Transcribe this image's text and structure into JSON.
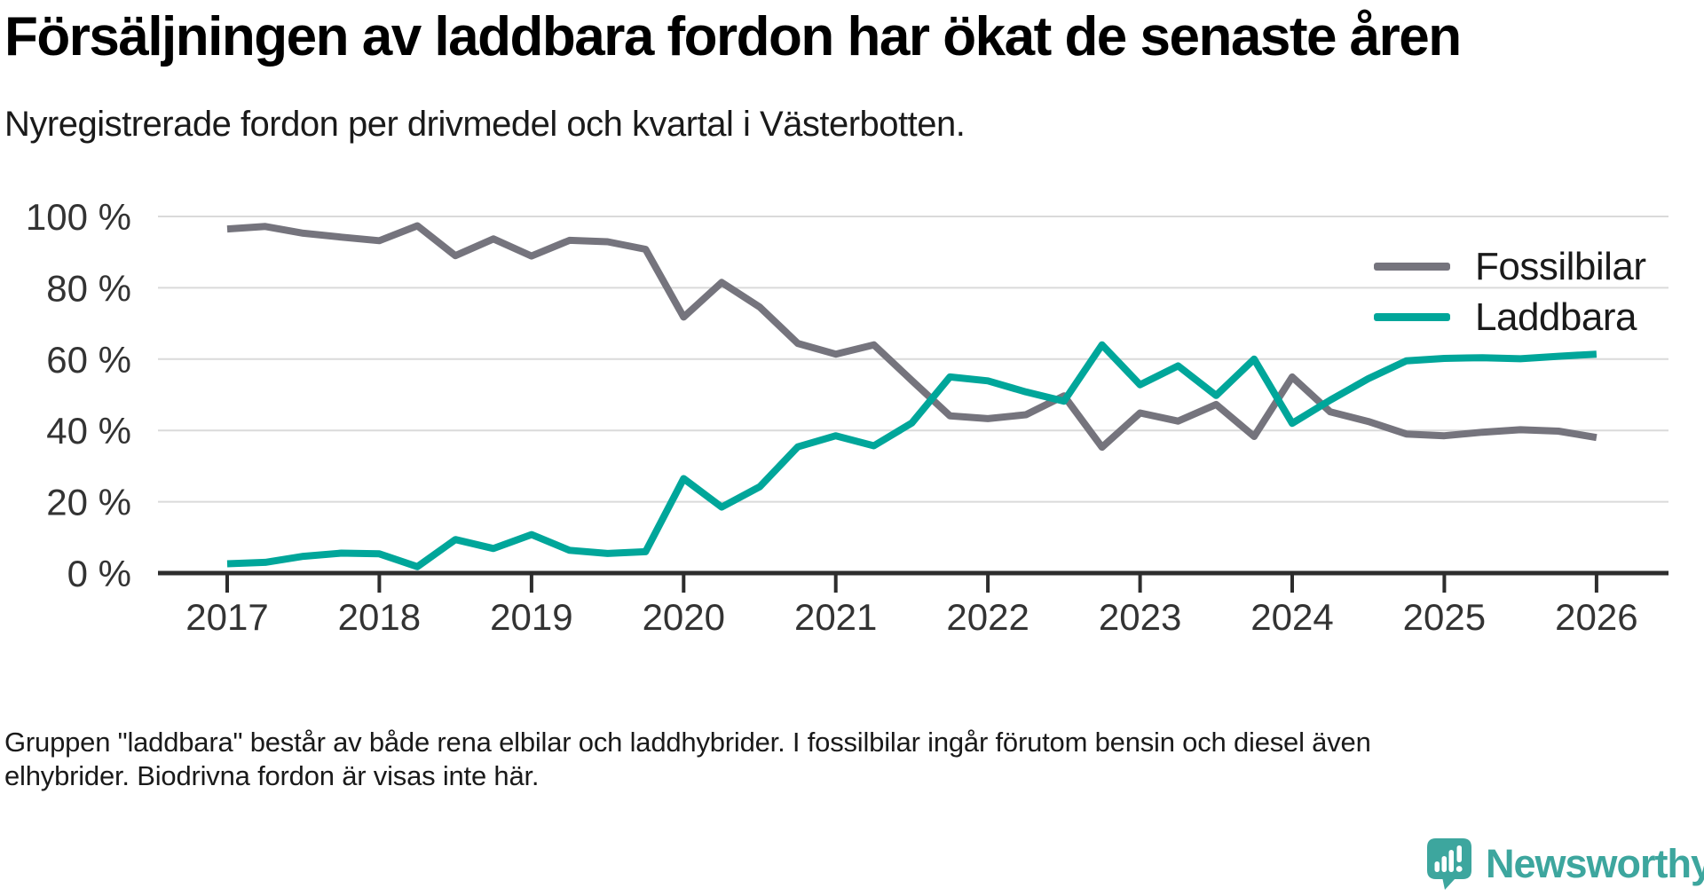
{
  "header": {
    "title": "Försäljningen av laddbara fordon har ökat de senaste åren",
    "subtitle": "Nyregistrerade fordon per drivmedel och kvartal i Västerbotten."
  },
  "footnote": {
    "line1": "Gruppen \"laddbara\" består av både rena elbilar och laddhybrider. I fossilbilar ingår förutom bensin och diesel även",
    "line2": "elhybrider. Biodrivna fordon är visas inte här."
  },
  "logo": {
    "brand": "Newsworthy",
    "color": "#3da69e"
  },
  "chart_data": {
    "type": "line",
    "title": "Försäljningen av laddbara fordon har ökat de senaste åren",
    "subtitle": "Nyregistrerade fordon per drivmedel och kvartal i Västerbotten.",
    "unit": "%",
    "ylim": [
      0,
      100
    ],
    "grid": true,
    "legend_position": "top-right",
    "y_ticks": [
      {
        "value": 100,
        "label": "100 %"
      },
      {
        "value": 80,
        "label": "80 %"
      },
      {
        "value": 60,
        "label": "60 %"
      },
      {
        "value": 40,
        "label": "40 %"
      },
      {
        "value": 20,
        "label": "20 %"
      },
      {
        "value": 0,
        "label": "0 %"
      }
    ],
    "x_tick_labels": [
      "2017",
      "2018",
      "2019",
      "2020",
      "2021",
      "2022",
      "2023",
      "2024",
      "2025",
      "2026"
    ],
    "categories": [
      "2017 Q1",
      "2017 Q2",
      "2017 Q3",
      "2017 Q4",
      "2018 Q1",
      "2018 Q2",
      "2018 Q3",
      "2018 Q4",
      "2019 Q1",
      "2019 Q2",
      "2019 Q3",
      "2019 Q4",
      "2020 Q1",
      "2020 Q2",
      "2020 Q3",
      "2020 Q4",
      "2021 Q1",
      "2021 Q2",
      "2021 Q3",
      "2021 Q4",
      "2022 Q1",
      "2022 Q2",
      "2022 Q3",
      "2022 Q4",
      "2023 Q1",
      "2023 Q2",
      "2023 Q3",
      "2023 Q4",
      "2024 Q1",
      "2024 Q2",
      "2024 Q3",
      "2024 Q4",
      "2025 Q1",
      "2025 Q2",
      "2025 Q3",
      "2025 Q4",
      "2026 Q1"
    ],
    "series": [
      {
        "name": "Fossilbilar",
        "color": "#75747d",
        "values": [
          96.5,
          97.2,
          95.3,
          94.2,
          93.2,
          97.4,
          89.0,
          93.7,
          88.9,
          93.3,
          92.9,
          90.8,
          71.8,
          81.5,
          74.6,
          64.4,
          61.4,
          64.0,
          54.0,
          44.1,
          43.3,
          44.4,
          49.7,
          35.3,
          44.9,
          42.6,
          47.3,
          38.3,
          55.0,
          45.2,
          42.5,
          39.0,
          38.5,
          39.5,
          40.2,
          39.8,
          38.0
        ]
      },
      {
        "name": "Laddbara",
        "color": "#00a69a",
        "values": [
          2.6,
          3.0,
          4.7,
          5.6,
          5.4,
          1.8,
          9.4,
          6.9,
          10.8,
          6.4,
          5.5,
          6.0,
          26.5,
          18.5,
          24.2,
          35.4,
          38.5,
          35.7,
          42.1,
          55.0,
          53.9,
          50.8,
          48.2,
          64.0,
          52.8,
          58.1,
          49.8,
          60.0,
          42.0,
          48.5,
          54.5,
          59.5,
          60.2,
          60.4,
          60.1,
          60.8,
          61.4
        ]
      }
    ]
  }
}
